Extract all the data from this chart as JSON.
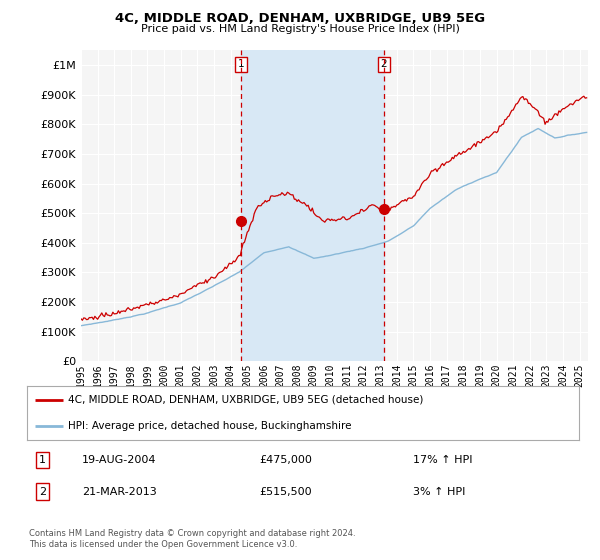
{
  "title": "4C, MIDDLE ROAD, DENHAM, UXBRIDGE, UB9 5EG",
  "subtitle": "Price paid vs. HM Land Registry's House Price Index (HPI)",
  "ytick_values": [
    0,
    100000,
    200000,
    300000,
    400000,
    500000,
    600000,
    700000,
    800000,
    900000,
    1000000
  ],
  "ylim": [
    0,
    1050000
  ],
  "xlim_start": 1995.3,
  "xlim_end": 2025.5,
  "background_color": "#ffffff",
  "plot_bg_color": "#f5f5f5",
  "grid_color": "#ffffff",
  "shade_color": "#d8e8f5",
  "transaction_color": "#cc0000",
  "hpi_color": "#88b8d8",
  "vline_color": "#cc0000",
  "legend_label_transaction": "4C, MIDDLE ROAD, DENHAM, UXBRIDGE, UB9 5EG (detached house)",
  "legend_label_hpi": "HPI: Average price, detached house, Buckinghamshire",
  "transaction1_x": 2004.63,
  "transaction1_y": 475000,
  "transaction2_x": 2013.22,
  "transaction2_y": 515500,
  "annotation1_date": "19-AUG-2004",
  "annotation1_price": "£475,000",
  "annotation1_hpi": "17% ↑ HPI",
  "annotation2_date": "21-MAR-2013",
  "annotation2_price": "£515,500",
  "annotation2_hpi": "3% ↑ HPI",
  "footnote": "Contains HM Land Registry data © Crown copyright and database right 2024.\nThis data is licensed under the Open Government Licence v3.0.",
  "xtick_years": [
    1995,
    1996,
    1997,
    1998,
    1999,
    2000,
    2001,
    2002,
    2003,
    2004,
    2005,
    2006,
    2007,
    2008,
    2009,
    2010,
    2011,
    2012,
    2013,
    2014,
    2015,
    2016,
    2017,
    2018,
    2019,
    2020,
    2021,
    2022,
    2023,
    2024,
    2025
  ]
}
